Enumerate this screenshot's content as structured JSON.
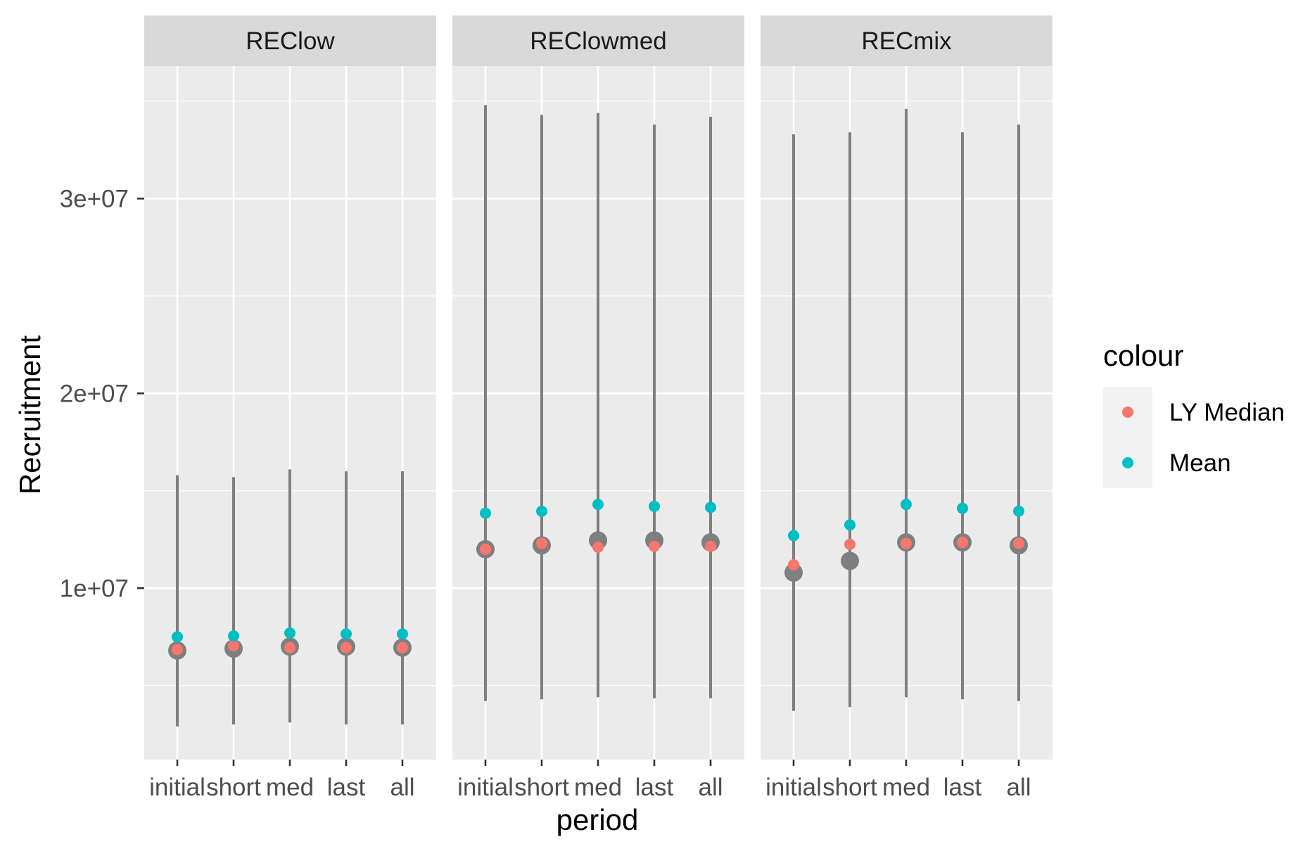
{
  "chart_data": {
    "type": "scatter",
    "subtype": "faceted point-range",
    "xlabel": "period",
    "ylabel": "Recruitment",
    "categories": [
      "initial",
      "short",
      "med",
      "last",
      "all"
    ],
    "y_ticks": [
      10000000,
      20000000,
      30000000
    ],
    "y_tick_labels": [
      "1e+07",
      "2e+07",
      "3e+07"
    ],
    "ylim": [
      1200000,
      36800000
    ],
    "grid": true,
    "legend": {
      "title": "colour",
      "position": "right",
      "entries": [
        {
          "label": "LY Median",
          "color": "#F8766D"
        },
        {
          "label": "Mean",
          "color": "#00BFC4"
        }
      ]
    },
    "colors": {
      "panel_bg": "#EBEBEB",
      "strip_bg": "#D9D9D9",
      "grid": "#FFFFFF",
      "range": "#7F7F7F",
      "median": "#7F7F7F",
      "ly_median": "#F8766D",
      "mean": "#00BFC4"
    },
    "facets": [
      {
        "name": "REClow",
        "lower": [
          2900000,
          3000000,
          3100000,
          3000000,
          3000000
        ],
        "upper": [
          15800000,
          15700000,
          16100000,
          16000000,
          16000000
        ],
        "median": [
          6800000,
          6900000,
          7000000,
          7000000,
          6950000
        ],
        "ly_median": [
          6850000,
          7050000,
          6950000,
          6950000,
          6950000
        ],
        "mean": [
          7500000,
          7550000,
          7700000,
          7650000,
          7650000
        ]
      },
      {
        "name": "REClowmed",
        "lower": [
          4200000,
          4300000,
          4400000,
          4350000,
          4350000
        ],
        "upper": [
          34800000,
          34300000,
          34400000,
          33800000,
          34200000
        ],
        "median": [
          12000000,
          12200000,
          12450000,
          12450000,
          12350000
        ],
        "ly_median": [
          12000000,
          12300000,
          12100000,
          12150000,
          12150000
        ],
        "mean": [
          13850000,
          13950000,
          14300000,
          14200000,
          14150000
        ]
      },
      {
        "name": "RECmix",
        "lower": [
          3700000,
          3900000,
          4400000,
          4300000,
          4200000
        ],
        "upper": [
          33300000,
          33400000,
          34600000,
          33400000,
          33800000
        ],
        "median": [
          10800000,
          11400000,
          12350000,
          12350000,
          12200000
        ],
        "ly_median": [
          11200000,
          12250000,
          12300000,
          12350000,
          12300000
        ],
        "mean": [
          12700000,
          13250000,
          14300000,
          14100000,
          13950000
        ]
      }
    ]
  }
}
